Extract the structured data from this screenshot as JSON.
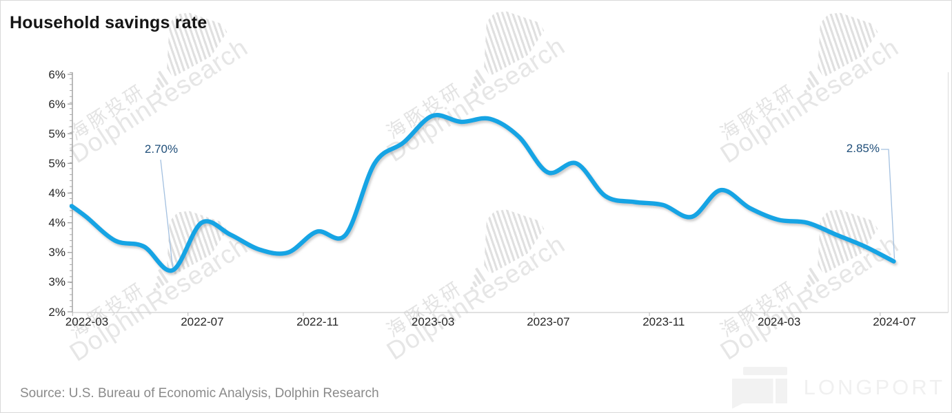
{
  "page": {
    "title": "Household savings rate",
    "source": "Source: U.S. Bureau of Economic Analysis, Dolphin Research"
  },
  "watermark": {
    "cjk": "海豚投研",
    "latin": "DolphinResearch",
    "brand": "LONGPORT"
  },
  "annotations": {
    "dip": "2.70%",
    "end": "2.85%"
  },
  "chart_data": {
    "type": "line",
    "title": "Household savings rate",
    "x": [
      "2022-03",
      "2022-04",
      "2022-05",
      "2022-06",
      "2022-07",
      "2022-08",
      "2022-09",
      "2022-10",
      "2022-11",
      "2022-12",
      "2023-01",
      "2023-02",
      "2023-03",
      "2023-04",
      "2023-05",
      "2023-06",
      "2023-07",
      "2023-08",
      "2023-09",
      "2023-10",
      "2023-11",
      "2023-12",
      "2024-01",
      "2024-02",
      "2024-03",
      "2024-04",
      "2024-05",
      "2024-06",
      "2024-07"
    ],
    "values": [
      3.6,
      3.2,
      3.1,
      2.7,
      3.5,
      3.3,
      3.05,
      3.0,
      3.35,
      3.3,
      4.5,
      4.85,
      5.3,
      5.2,
      5.25,
      4.95,
      4.35,
      4.5,
      3.95,
      3.85,
      3.8,
      3.6,
      4.05,
      3.75,
      3.55,
      3.5,
      3.3,
      3.1,
      2.85
    ],
    "left_edge_value": 3.78,
    "x_tick_labels": [
      "2022-03",
      "2022-07",
      "2022-11",
      "2023-03",
      "2023-07",
      "2023-11",
      "2024-03",
      "2024-07"
    ],
    "y_tick_labels": [
      "6%",
      "6%",
      "5%",
      "5%",
      "4%",
      "4%",
      "3%",
      "3%",
      "2%"
    ],
    "y_tick_values": [
      6.0,
      5.5,
      5.0,
      4.5,
      4.0,
      3.5,
      3.0,
      2.5,
      2.0
    ],
    "ylim": [
      2.0,
      6.2
    ],
    "xlabel": "",
    "ylabel": "",
    "grid": false,
    "legend": "none",
    "smoothed": true,
    "line_color": "#18a4e4",
    "annotation_color": "#1f4e79",
    "leader_color": "#a3c0e0",
    "annotated_points": [
      {
        "month": "2022-06",
        "value": 2.7,
        "label": "2.70%"
      },
      {
        "month": "2024-07",
        "value": 2.85,
        "label": "2.85%"
      }
    ]
  }
}
